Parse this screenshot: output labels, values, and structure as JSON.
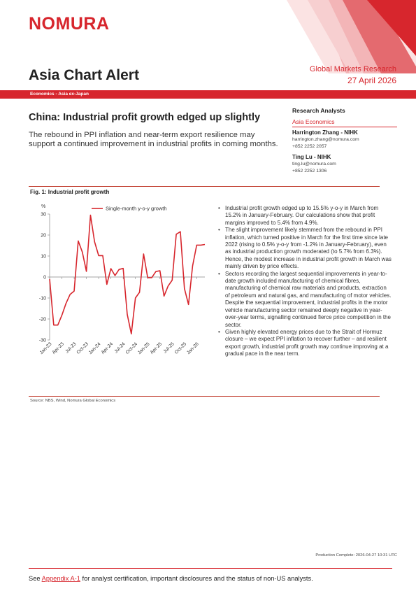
{
  "header": {
    "logo": "NOMURA",
    "publication": "Asia Chart Alert",
    "brand_line": "Global Markets Research",
    "date": "27 April 2026",
    "section": "Economics - Asia ex-Japan",
    "accent_color": "#d7262d"
  },
  "article": {
    "title": "China: Industrial profit growth edged up slightly",
    "subtitle": "The rebound in PPI inflation and near-term export resilience may support a continued improvement in industrial profits in coming months."
  },
  "analysts": {
    "heading": "Research Analysts",
    "team": "Asia Economics",
    "people": [
      {
        "name": "Harrington Zhang - NIHK",
        "email": "harrington.zhang@nomura.com",
        "phone": "+852 2252 2057"
      },
      {
        "name": "Ting Lu - NIHK",
        "email": "ting.lu@nomura.com",
        "phone": "+852 2252 1306"
      }
    ]
  },
  "figure": {
    "title": "Fig. 1: Industrial profit growth",
    "source": "Source: NBS, Wind, Nomura Global Economics"
  },
  "chart_data": {
    "type": "line",
    "ylabel": "%",
    "ylim": [
      -30,
      30
    ],
    "yticks": [
      30,
      20,
      10,
      0,
      -10,
      -20,
      -30
    ],
    "grid": false,
    "legend_position": "top",
    "x_tick_labels": [
      "Jan-23",
      "Apr-23",
      "Jul-23",
      "Oct-23",
      "Jan-24",
      "Apr-24",
      "Jul-24",
      "Oct-24",
      "Jan-25",
      "Apr-25",
      "Jul-25",
      "Oct-25",
      "Jan-26"
    ],
    "x": [
      "Jan-23",
      "Feb-23",
      "Mar-23",
      "Apr-23",
      "May-23",
      "Jun-23",
      "Jul-23",
      "Aug-23",
      "Sep-23",
      "Oct-23",
      "Nov-23",
      "Dec-23",
      "Jan-24",
      "Feb-24",
      "Mar-24",
      "Apr-24",
      "May-24",
      "Jun-24",
      "Jul-24",
      "Aug-24",
      "Sep-24",
      "Oct-24",
      "Nov-24",
      "Dec-24",
      "Jan-25",
      "Feb-25",
      "Mar-25",
      "Apr-25",
      "May-25",
      "Jun-25",
      "Jul-25",
      "Aug-25",
      "Sep-25",
      "Oct-25",
      "Nov-25",
      "Dec-25",
      "Jan-26",
      "Feb-26",
      "Mar-26"
    ],
    "series": [
      {
        "name": "Single-month y-o-y growth",
        "color": "#d7262d",
        "values": [
          -1,
          -22.9,
          -22.9,
          -18.2,
          -12.6,
          -8.3,
          -6.7,
          17.2,
          11.9,
          2.7,
          29.5,
          16.8,
          10.2,
          10.2,
          -3.5,
          4.0,
          0.7,
          3.6,
          4.1,
          -17.8,
          -27.1,
          -10.0,
          -7.3,
          11.0,
          -0.3,
          -0.3,
          2.6,
          3.0,
          -9.1,
          -4.3,
          -1.5,
          20.4,
          21.6,
          -5.5,
          -13.1,
          5.3,
          15.2,
          15.2,
          15.5
        ]
      }
    ]
  },
  "bullets": [
    "Industrial profit growth edged up to 15.5% y-o-y in March from 15.2% in January-February. Our calculations show that profit margins improved to 5.4% from 4.9%.",
    "The slight improvement likely stemmed from the rebound in PPI inflation, which turned positive in March for the first time since late 2022 (rising to 0.5% y-o-y from -1.2% in January-February), even as industrial production growth moderated (to 5.7% from 6.3%). Hence, the modest increase in industrial profit growth in March was mainly driven by price effects.",
    "Sectors recording the largest sequential improvements in year-to-date growth included manufacturing of chemical fibres, manufacturing of chemical raw materials and products, extraction of petroleum and natural gas, and manufacturing of motor vehicles. Despite the sequential improvement, industrial profits in the motor vehicle manufacturing sector remained deeply negative in year-over-year terms, signalling continued fierce price competition in the sector.",
    "Given highly elevated energy prices due to the Strait of Hormuz closure – we expect PPI inflation to recover further – and resilient export growth, industrial profit growth may continue improving at a gradual pace in the near term."
  ],
  "production": "Production Complete: 2026-04-27 10:31 UTC",
  "footer": {
    "prefix": "See ",
    "link": "Appendix A-1",
    "suffix": " for analyst certification, important disclosures and the status of non-US analysts."
  }
}
